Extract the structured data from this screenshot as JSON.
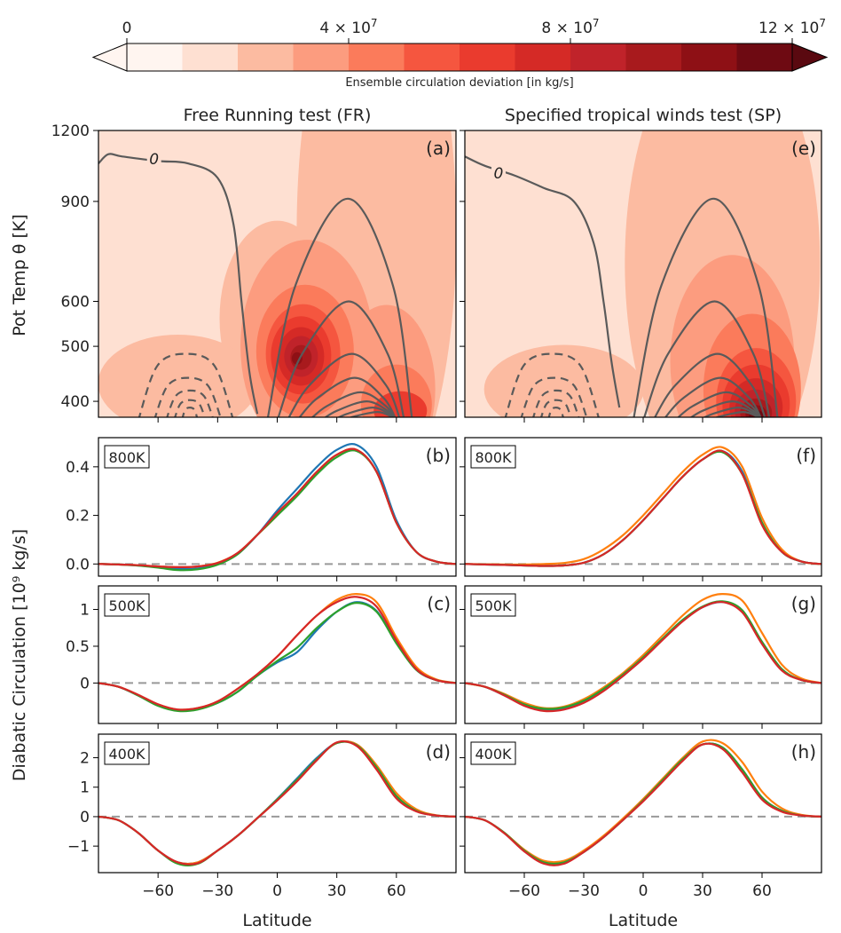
{
  "colorbar": {
    "label": "Ensemble circulation deviation [in kg/s]",
    "tick_labels": [
      "0",
      "4 × 10^7",
      "8 × 10^7",
      "12 × 10^7"
    ],
    "tick_values": [
      0,
      40000000,
      80000000,
      120000000
    ],
    "range": [
      0,
      120000000
    ],
    "colors": [
      "#fff5f0",
      "#fee0d2",
      "#fcbba1",
      "#fc9c7f",
      "#fb7b5b",
      "#f5563f",
      "#ea3b2e",
      "#d52a26",
      "#c0232a",
      "#a81a1d",
      "#8e1015",
      "#6e0a12"
    ],
    "extend": "both"
  },
  "panel_titles": [
    "Free Running test (FR)",
    "Specified tropical winds test (SP)"
  ],
  "shared_xlabel": "Latitude",
  "top_row_ylabel": "Pot Temp θ [K]",
  "lower_rows_ylabel": "Diabatic Circulation [10⁹ kg/s]",
  "chart_data": [
    {
      "panel": "(a)",
      "type": "heatmap",
      "title": "Free Running test (FR)",
      "xlabel": "",
      "ylabel": "Pot Temp θ [K]",
      "xlim": [
        -90,
        90
      ],
      "ylim": [
        375,
        1200
      ],
      "y_scale": "log",
      "y_ticks": [
        400,
        500,
        600,
        900,
        1200
      ],
      "x_ticks": [
        -60,
        -30,
        0,
        30,
        60
      ],
      "contour_labels": [
        "0"
      ],
      "deviation_maximum": {
        "lat": 12,
        "theta": 480,
        "value": 100000000
      }
    },
    {
      "panel": "(b)",
      "type": "line",
      "box_label": "800K",
      "xlim": [
        -90,
        90
      ],
      "ylim": [
        -0.05,
        0.52
      ],
      "y_ticks": [
        0.0,
        0.2,
        0.4
      ],
      "x": [
        -90,
        -80,
        -70,
        -60,
        -50,
        -40,
        -30,
        -20,
        -10,
        0,
        10,
        20,
        30,
        40,
        50,
        60,
        70,
        80,
        90
      ],
      "series": [
        {
          "color": "#1f77b4",
          "values": [
            0,
            -0.002,
            -0.006,
            -0.012,
            -0.02,
            -0.018,
            0.0,
            0.04,
            0.12,
            0.22,
            0.31,
            0.4,
            0.47,
            0.49,
            0.4,
            0.18,
            0.05,
            0.01,
            0
          ]
        },
        {
          "color": "#ff7f0e",
          "values": [
            0,
            -0.002,
            -0.005,
            -0.01,
            -0.013,
            -0.01,
            0.005,
            0.045,
            0.12,
            0.2,
            0.29,
            0.38,
            0.45,
            0.47,
            0.38,
            0.17,
            0.05,
            0.01,
            0
          ]
        },
        {
          "color": "#2ca02c",
          "values": [
            0,
            -0.002,
            -0.007,
            -0.015,
            -0.025,
            -0.022,
            -0.003,
            0.04,
            0.12,
            0.2,
            0.28,
            0.37,
            0.44,
            0.465,
            0.38,
            0.17,
            0.05,
            0.01,
            0
          ]
        },
        {
          "color": "#d62728",
          "values": [
            0,
            -0.002,
            -0.005,
            -0.01,
            -0.013,
            -0.01,
            0.004,
            0.045,
            0.12,
            0.21,
            0.29,
            0.38,
            0.45,
            0.47,
            0.38,
            0.17,
            0.05,
            0.01,
            0
          ]
        }
      ]
    },
    {
      "panel": "(c)",
      "type": "line",
      "box_label": "500K",
      "xlim": [
        -90,
        90
      ],
      "ylim": [
        -0.55,
        1.32
      ],
      "y_ticks": [
        0,
        0.5,
        1
      ],
      "x": [
        -90,
        -80,
        -70,
        -60,
        -50,
        -40,
        -30,
        -20,
        -10,
        0,
        10,
        20,
        30,
        40,
        50,
        60,
        70,
        80,
        90
      ],
      "series": [
        {
          "color": "#1f77b4",
          "values": [
            0,
            -0.05,
            -0.17,
            -0.3,
            -0.37,
            -0.35,
            -0.27,
            -0.12,
            0.1,
            0.28,
            0.42,
            0.72,
            0.97,
            1.1,
            0.98,
            0.55,
            0.18,
            0.04,
            0
          ]
        },
        {
          "color": "#ff7f0e",
          "values": [
            0,
            -0.05,
            -0.16,
            -0.29,
            -0.36,
            -0.34,
            -0.25,
            -0.08,
            0.12,
            0.36,
            0.65,
            0.92,
            1.13,
            1.21,
            1.1,
            0.62,
            0.22,
            0.05,
            0
          ]
        },
        {
          "color": "#2ca02c",
          "values": [
            0,
            -0.05,
            -0.17,
            -0.31,
            -0.38,
            -0.36,
            -0.27,
            -0.12,
            0.1,
            0.3,
            0.48,
            0.75,
            0.97,
            1.09,
            0.97,
            0.54,
            0.18,
            0.04,
            0
          ]
        },
        {
          "color": "#d62728",
          "values": [
            0,
            -0.05,
            -0.16,
            -0.29,
            -0.36,
            -0.34,
            -0.25,
            -0.08,
            0.12,
            0.36,
            0.65,
            0.92,
            1.1,
            1.17,
            1.04,
            0.58,
            0.19,
            0.04,
            0
          ]
        }
      ]
    },
    {
      "panel": "(d)",
      "type": "line",
      "box_label": "400K",
      "xlim": [
        -90,
        90
      ],
      "ylim": [
        -1.9,
        2.8
      ],
      "y_ticks": [
        -1,
        0,
        1,
        2
      ],
      "x": [
        -90,
        -80,
        -70,
        -60,
        -50,
        -40,
        -30,
        -20,
        -10,
        0,
        10,
        20,
        30,
        40,
        50,
        60,
        70,
        80,
        90
      ],
      "series": [
        {
          "color": "#1f77b4",
          "values": [
            0,
            -0.12,
            -0.55,
            -1.15,
            -1.55,
            -1.55,
            -1.15,
            -0.65,
            -0.05,
            0.6,
            1.3,
            2.0,
            2.5,
            2.45,
            1.7,
            0.7,
            0.2,
            0.04,
            0
          ]
        },
        {
          "color": "#ff7f0e",
          "values": [
            0,
            -0.12,
            -0.55,
            -1.15,
            -1.55,
            -1.55,
            -1.15,
            -0.65,
            -0.05,
            0.58,
            1.25,
            1.95,
            2.5,
            2.45,
            1.75,
            0.8,
            0.25,
            0.05,
            0
          ]
        },
        {
          "color": "#2ca02c",
          "values": [
            0,
            -0.12,
            -0.55,
            -1.15,
            -1.6,
            -1.6,
            -1.15,
            -0.65,
            -0.05,
            0.58,
            1.25,
            1.95,
            2.5,
            2.42,
            1.68,
            0.7,
            0.2,
            0.04,
            0
          ]
        },
        {
          "color": "#d62728",
          "values": [
            0,
            -0.12,
            -0.55,
            -1.15,
            -1.55,
            -1.58,
            -1.15,
            -0.65,
            -0.05,
            0.55,
            1.2,
            1.92,
            2.52,
            2.4,
            1.6,
            0.62,
            0.18,
            0.04,
            0
          ]
        }
      ]
    },
    {
      "panel": "(e)",
      "type": "heatmap",
      "title": "Specified tropical winds test (SP)",
      "xlim": [
        -90,
        90
      ],
      "ylim": [
        375,
        1200
      ],
      "y_scale": "log",
      "x_ticks": [
        -60,
        -30,
        0,
        30,
        60
      ],
      "contour_labels": [
        "0"
      ],
      "deviation_maximum": {
        "lat": 57,
        "theta": 390,
        "value": 120000000
      }
    },
    {
      "panel": "(f)",
      "type": "line",
      "box_label": "800K",
      "xlim": [
        -90,
        90
      ],
      "ylim": [
        -0.05,
        0.52
      ],
      "x": [
        -90,
        -80,
        -70,
        -60,
        -50,
        -40,
        -30,
        -20,
        -10,
        0,
        10,
        20,
        30,
        40,
        50,
        60,
        70,
        80,
        90
      ],
      "series": [
        {
          "color": "#1f77b4",
          "values": [
            0,
            -0.002,
            -0.004,
            -0.006,
            -0.008,
            -0.006,
            0.005,
            0.04,
            0.1,
            0.18,
            0.27,
            0.36,
            0.43,
            0.465,
            0.38,
            0.17,
            0.05,
            0.01,
            0
          ]
        },
        {
          "color": "#ff7f0e",
          "values": [
            0,
            -0.001,
            -0.002,
            -0.002,
            0.0,
            0.004,
            0.02,
            0.06,
            0.12,
            0.2,
            0.29,
            0.38,
            0.45,
            0.48,
            0.4,
            0.19,
            0.06,
            0.01,
            0
          ]
        },
        {
          "color": "#2ca02c",
          "values": [
            0,
            -0.002,
            -0.004,
            -0.006,
            -0.008,
            -0.006,
            0.005,
            0.04,
            0.1,
            0.18,
            0.27,
            0.36,
            0.43,
            0.46,
            0.37,
            0.17,
            0.05,
            0.01,
            0
          ]
        },
        {
          "color": "#d62728",
          "values": [
            0,
            -0.002,
            -0.004,
            -0.006,
            -0.008,
            -0.006,
            0.005,
            0.04,
            0.1,
            0.18,
            0.27,
            0.36,
            0.43,
            0.465,
            0.37,
            0.16,
            0.05,
            0.01,
            0
          ]
        }
      ]
    },
    {
      "panel": "(g)",
      "type": "line",
      "box_label": "500K",
      "xlim": [
        -90,
        90
      ],
      "ylim": [
        -0.55,
        1.32
      ],
      "x": [
        -90,
        -80,
        -70,
        -60,
        -50,
        -40,
        -30,
        -20,
        -10,
        0,
        10,
        20,
        30,
        40,
        50,
        60,
        70,
        80,
        90
      ],
      "series": [
        {
          "color": "#1f77b4",
          "values": [
            0,
            -0.05,
            -0.17,
            -0.3,
            -0.37,
            -0.35,
            -0.26,
            -0.1,
            0.1,
            0.34,
            0.6,
            0.85,
            1.03,
            1.1,
            0.98,
            0.55,
            0.18,
            0.04,
            0
          ]
        },
        {
          "color": "#ff7f0e",
          "values": [
            0,
            -0.05,
            -0.15,
            -0.27,
            -0.34,
            -0.32,
            -0.22,
            -0.06,
            0.14,
            0.38,
            0.65,
            0.92,
            1.13,
            1.21,
            1.12,
            0.68,
            0.25,
            0.06,
            0
          ]
        },
        {
          "color": "#2ca02c",
          "values": [
            0,
            -0.05,
            -0.16,
            -0.29,
            -0.35,
            -0.33,
            -0.24,
            -0.08,
            0.12,
            0.35,
            0.61,
            0.86,
            1.04,
            1.11,
            0.99,
            0.56,
            0.19,
            0.04,
            0
          ]
        },
        {
          "color": "#d62728",
          "values": [
            0,
            -0.05,
            -0.17,
            -0.31,
            -0.38,
            -0.36,
            -0.27,
            -0.11,
            0.1,
            0.33,
            0.59,
            0.84,
            1.03,
            1.1,
            0.96,
            0.53,
            0.17,
            0.04,
            0
          ]
        }
      ]
    },
    {
      "panel": "(h)",
      "type": "line",
      "box_label": "400K",
      "xlim": [
        -90,
        90
      ],
      "ylim": [
        -1.9,
        2.8
      ],
      "x": [
        -90,
        -80,
        -70,
        -60,
        -50,
        -40,
        -30,
        -20,
        -10,
        0,
        10,
        20,
        30,
        40,
        50,
        60,
        70,
        80,
        90
      ],
      "series": [
        {
          "color": "#1f77b4",
          "values": [
            0,
            -0.12,
            -0.55,
            -1.15,
            -1.55,
            -1.55,
            -1.2,
            -0.7,
            -0.1,
            0.55,
            1.25,
            1.95,
            2.45,
            2.35,
            1.6,
            0.65,
            0.2,
            0.04,
            0
          ]
        },
        {
          "color": "#ff7f0e",
          "values": [
            0,
            -0.12,
            -0.55,
            -1.12,
            -1.5,
            -1.5,
            -1.15,
            -0.65,
            -0.05,
            0.6,
            1.3,
            2.0,
            2.55,
            2.5,
            1.85,
            0.85,
            0.28,
            0.06,
            0
          ]
        },
        {
          "color": "#2ca02c",
          "values": [
            0,
            -0.12,
            -0.55,
            -1.15,
            -1.55,
            -1.55,
            -1.2,
            -0.7,
            -0.1,
            0.55,
            1.25,
            1.95,
            2.45,
            2.35,
            1.6,
            0.65,
            0.2,
            0.04,
            0
          ]
        },
        {
          "color": "#d62728",
          "values": [
            0,
            -0.12,
            -0.57,
            -1.18,
            -1.6,
            -1.6,
            -1.2,
            -0.7,
            -0.1,
            0.52,
            1.2,
            1.9,
            2.45,
            2.3,
            1.5,
            0.58,
            0.17,
            0.04,
            0
          ]
        }
      ]
    }
  ]
}
